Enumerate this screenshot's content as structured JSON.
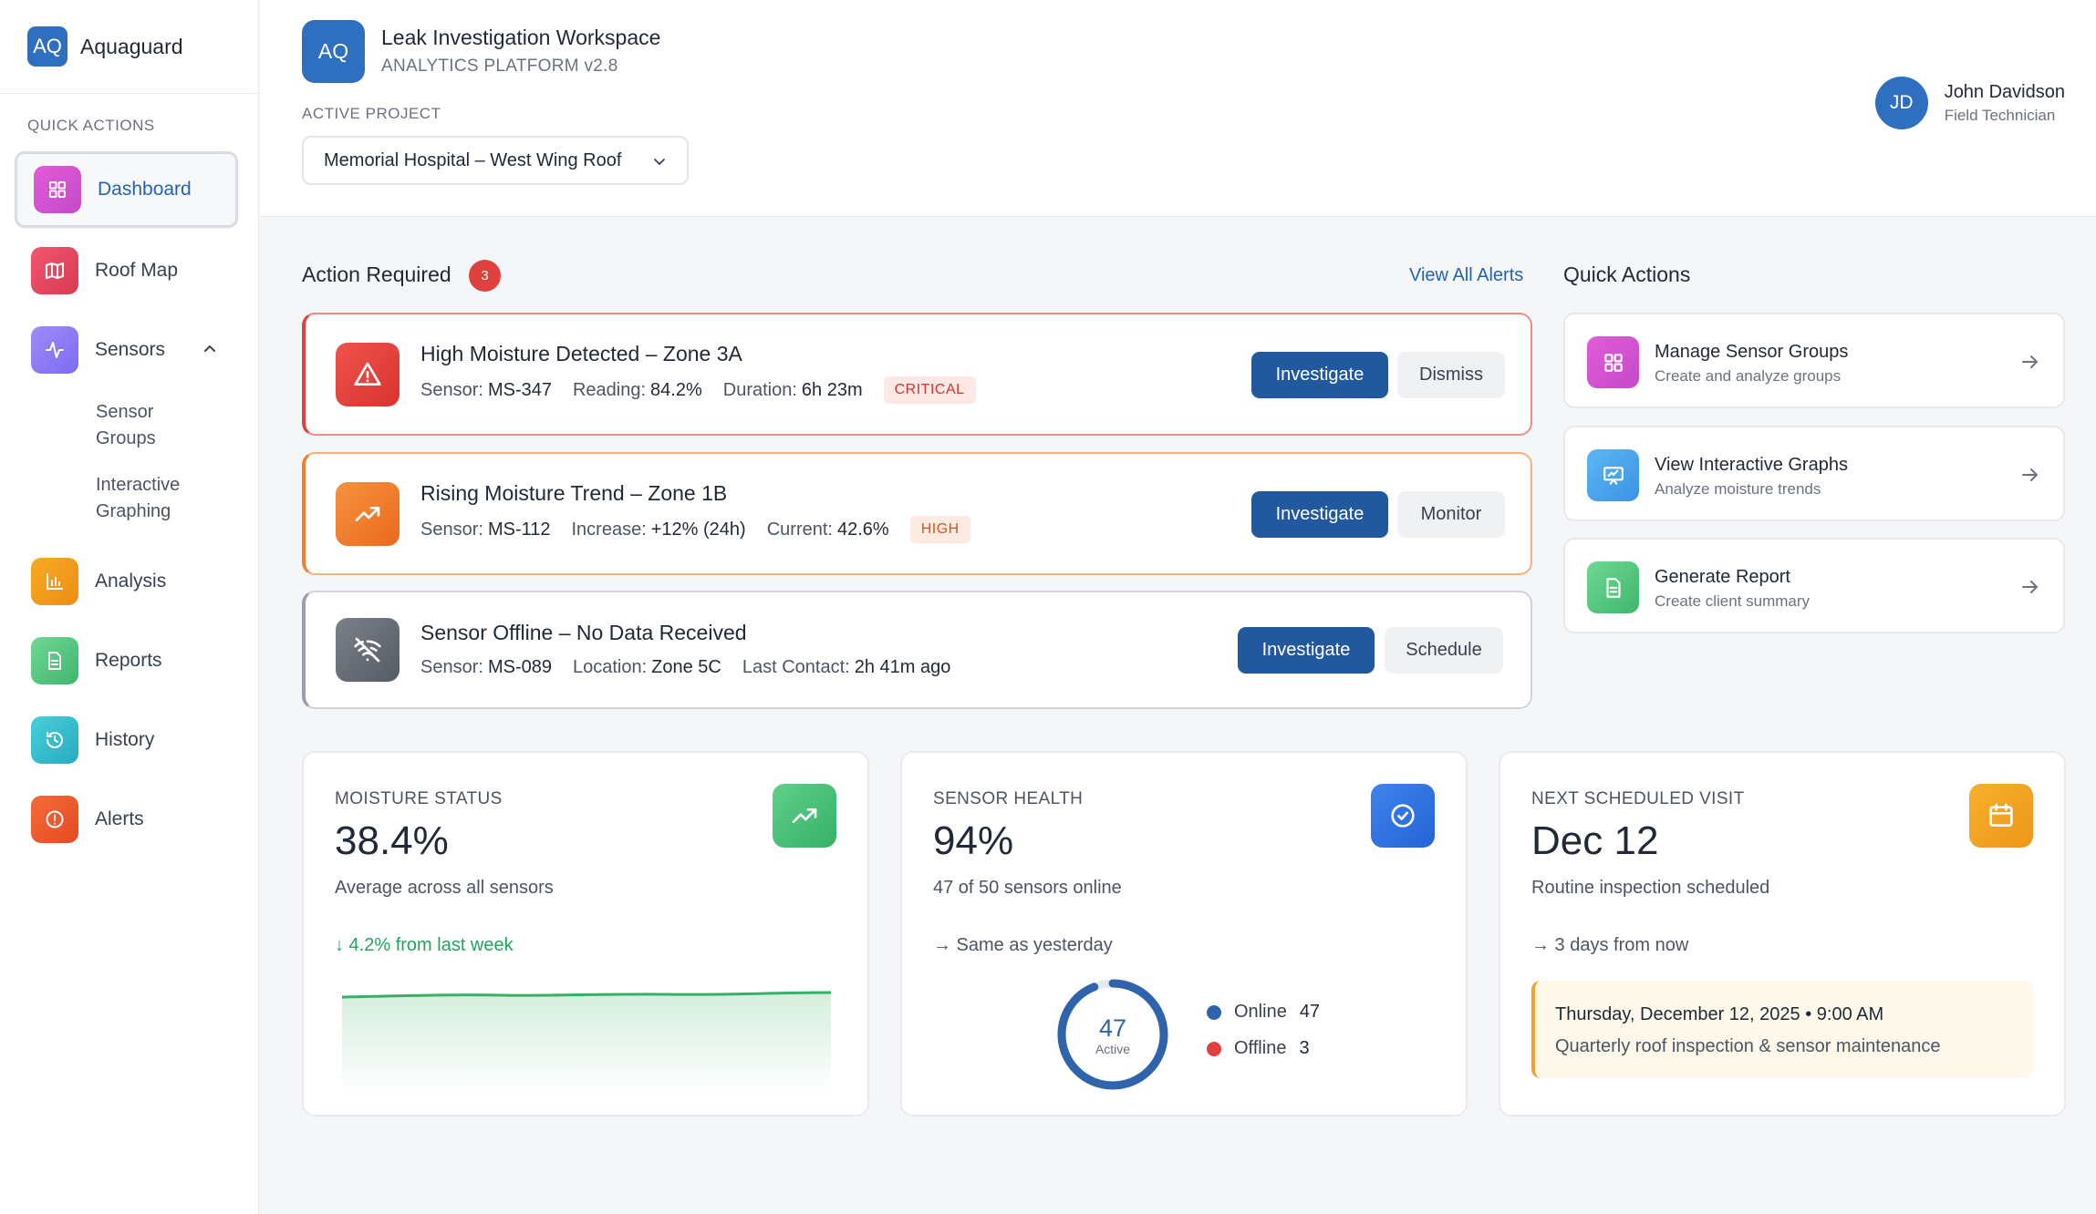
{
  "brand": {
    "logo": "AQ",
    "name": "Aquaguard"
  },
  "sidebar": {
    "section_label": "QUICK ACTIONS",
    "items": [
      {
        "label": "Dashboard",
        "icon": "grid-icon",
        "color": "#d54fd0"
      },
      {
        "label": "Roof Map",
        "icon": "map-icon",
        "color": "#e8455f"
      },
      {
        "label": "Sensors",
        "icon": "activity-icon",
        "color": "#8b7cf6"
      },
      {
        "label": "Analysis",
        "icon": "bar-chart-icon",
        "color": "#f29a1e"
      },
      {
        "label": "Reports",
        "icon": "document-icon",
        "color": "#4cc37a"
      },
      {
        "label": "History",
        "icon": "history-icon",
        "color": "#36bccd"
      },
      {
        "label": "Alerts",
        "icon": "alert-circle-icon",
        "color": "#ef5b2b"
      }
    ],
    "sensor_subitems": [
      {
        "line1": "Sensor",
        "line2": "Groups"
      },
      {
        "line1": "Interactive",
        "line2": "Graphing"
      }
    ]
  },
  "header": {
    "logo": "AQ",
    "title": "Leak Investigation Workspace",
    "subtitle": "ANALYTICS PLATFORM v2.8",
    "project_label": "ACTIVE PROJECT",
    "project_value": "Memorial Hospital – West Wing Roof"
  },
  "user": {
    "initials": "JD",
    "name": "John Davidson",
    "role": "Field Technician"
  },
  "action_required": {
    "title": "Action Required",
    "count": "3",
    "view_all": "View All Alerts",
    "alerts": [
      {
        "title": "High Moisture Detected – Zone 3A",
        "fields": [
          [
            "Sensor:",
            "MS-347"
          ],
          [
            "Reading:",
            "84.2%"
          ],
          [
            "Duration:",
            "6h 23m"
          ]
        ],
        "severity": "CRITICAL",
        "primary": "Investigate",
        "secondary": "Dismiss",
        "color": "#e0413e"
      },
      {
        "title": "Rising Moisture Trend – Zone 1B",
        "fields": [
          [
            "Sensor:",
            "MS-112"
          ],
          [
            "Increase:",
            "+12% (24h)"
          ],
          [
            "Current:",
            "42.6%"
          ]
        ],
        "severity": "HIGH",
        "primary": "Investigate",
        "secondary": "Monitor",
        "color": "#f0802e"
      },
      {
        "title": "Sensor Offline – No Data Received",
        "fields": [
          [
            "Sensor:",
            "MS-089"
          ],
          [
            "Location:",
            "Zone 5C"
          ],
          [
            "Last Contact:",
            "2h 41m ago"
          ]
        ],
        "severity": "",
        "primary": "Investigate",
        "secondary": "Schedule",
        "color": "#6b7280"
      }
    ]
  },
  "quick_actions": {
    "title": "Quick Actions",
    "cards": [
      {
        "title": "Manage Sensor Groups",
        "subtitle": "Create and analyze groups",
        "icon": "grid-icon"
      },
      {
        "title": "View Interactive Graphs",
        "subtitle": "Analyze moisture trends",
        "icon": "presentation-chart-icon"
      },
      {
        "title": "Generate Report",
        "subtitle": "Create client summary",
        "icon": "document-icon"
      }
    ]
  },
  "stats": {
    "moisture": {
      "label": "MOISTURE STATUS",
      "value": "38.4%",
      "desc": "Average across all sensors",
      "trend": "↓ 4.2% from last week"
    },
    "health": {
      "label": "SENSOR HEALTH",
      "value": "94%",
      "desc": "47 of 50 sensors online",
      "trend": "→ Same as yesterday",
      "donut_value": "47",
      "donut_label": "Active",
      "online_fraction": 0.94,
      "legend": [
        {
          "label": "Online",
          "count": "47",
          "color": "#2f64ad"
        },
        {
          "label": "Offline",
          "count": "3",
          "color": "#e0413e"
        }
      ]
    },
    "visit": {
      "label": "NEXT SCHEDULED VISIT",
      "value": "Dec 12",
      "desc": "Routine inspection scheduled",
      "trend": "→ 3 days from now",
      "date": "Thursday, December 12, 2025 • 9:00 AM",
      "note": "Quarterly roof inspection & sensor maintenance"
    }
  }
}
